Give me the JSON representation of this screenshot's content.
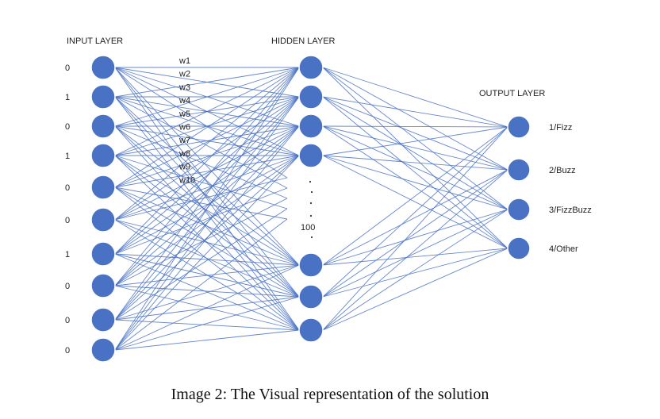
{
  "layers": {
    "input_title": "INPUT LAYER",
    "hidden_title": "HIDDEN LAYER",
    "output_title": "OUTPUT LAYER"
  },
  "input_bits": [
    "0",
    "1",
    "0",
    "1",
    "0",
    "0",
    "1",
    "0",
    "0",
    "0"
  ],
  "weights": [
    "w1",
    "w2",
    "w3",
    "w4",
    "w5",
    "w6",
    "w7",
    "w8",
    "w9",
    "w10"
  ],
  "hidden_count": "100",
  "outputs": [
    "1/Fizz",
    "2/Buzz",
    "3/FizzBuzz",
    "4/Other"
  ],
  "caption": "Image 2: The Visual representation of the solution",
  "colors": {
    "node": "#4a72c4",
    "edge": "#4a72c4"
  }
}
